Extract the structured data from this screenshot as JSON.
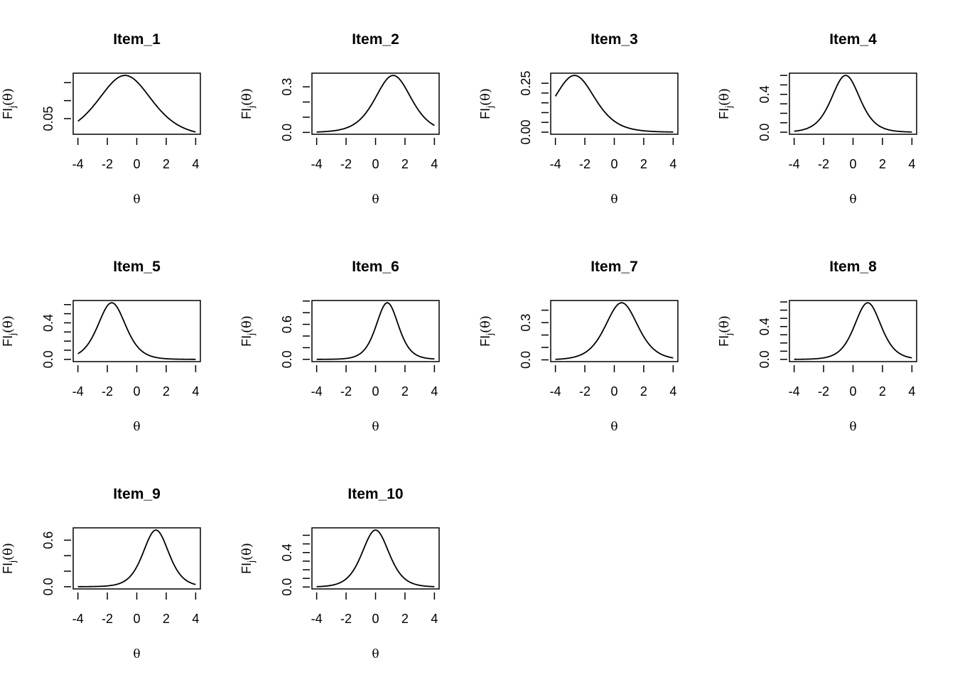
{
  "chart_data": {
    "type": "line",
    "layout": "3x4 grid of small multiples",
    "xlabel": "θ",
    "ylabel_main": "FI",
    "ylabel_sub": "j",
    "ylabel_arg": "(θ)",
    "xlim": [
      -4,
      4
    ],
    "xticks": [
      -4,
      -2,
      0,
      2,
      4
    ],
    "xtick_labels": [
      "-4",
      "-2",
      "0",
      "2",
      "4"
    ],
    "panels": [
      {
        "title": "Item_1",
        "a": 0.82,
        "b": -0.8,
        "peak": 0.17,
        "yticks": [
          0.05,
          0.1,
          0.15
        ],
        "ylabels": {
          "0.05": "0.05"
        }
      },
      {
        "title": "Item_2",
        "a": 1.22,
        "b": 1.2,
        "peak": 0.375,
        "yticks": [
          0,
          0.1,
          0.2,
          0.3
        ],
        "ylabels": {
          "0": "0.0",
          "0.3": "0.3"
        }
      },
      {
        "title": "Item_3",
        "a": 1.08,
        "b": -2.7,
        "peak": 0.29,
        "yticks": [
          0,
          0.05,
          0.1,
          0.15,
          0.2,
          0.25
        ],
        "ylabels": {
          "0": "0.00",
          "0.25": "0.25"
        }
      },
      {
        "title": "Item_4",
        "a": 1.55,
        "b": -0.5,
        "peak": 0.6,
        "yticks": [
          0,
          0.1,
          0.2,
          0.3,
          0.4,
          0.5,
          0.6
        ],
        "ylabels": {
          "0": "0.0",
          "0.4": "0.4"
        }
      },
      {
        "title": "Item_5",
        "a": 1.58,
        "b": -1.7,
        "peak": 0.62,
        "yticks": [
          0,
          0.1,
          0.2,
          0.3,
          0.4,
          0.5,
          0.6
        ],
        "ylabels": {
          "0": "0.0",
          "0.4": "0.4"
        }
      },
      {
        "title": "Item_6",
        "a": 1.97,
        "b": 0.8,
        "peak": 0.97,
        "yticks": [
          0,
          0.2,
          0.4,
          0.6,
          0.8,
          1.0
        ],
        "ylabels": {
          "0": "0.0",
          "0.6": "0.6"
        }
      },
      {
        "title": "Item_7",
        "a": 1.36,
        "b": 0.5,
        "peak": 0.46,
        "yticks": [
          0,
          0.1,
          0.2,
          0.3,
          0.4
        ],
        "ylabels": {
          "0": "0.0",
          "0.3": "0.3"
        }
      },
      {
        "title": "Item_8",
        "a": 1.66,
        "b": 1.0,
        "peak": 0.69,
        "yticks": [
          0,
          0.1,
          0.2,
          0.3,
          0.4,
          0.5,
          0.6,
          0.7
        ],
        "ylabels": {
          "0": "0.0",
          "0.4": "0.4"
        }
      },
      {
        "title": "Item_9",
        "a": 1.71,
        "b": 1.3,
        "peak": 0.73,
        "yticks": [
          0,
          0.2,
          0.4,
          0.6
        ],
        "ylabels": {
          "0": "0.0",
          "0.6": "0.6"
        }
      },
      {
        "title": "Item_10",
        "a": 1.63,
        "b": 0.0,
        "peak": 0.66,
        "yticks": [
          0,
          0.1,
          0.2,
          0.3,
          0.4,
          0.5,
          0.6
        ],
        "ylabels": {
          "0": "0.0",
          "0.4": "0.4"
        }
      }
    ]
  }
}
